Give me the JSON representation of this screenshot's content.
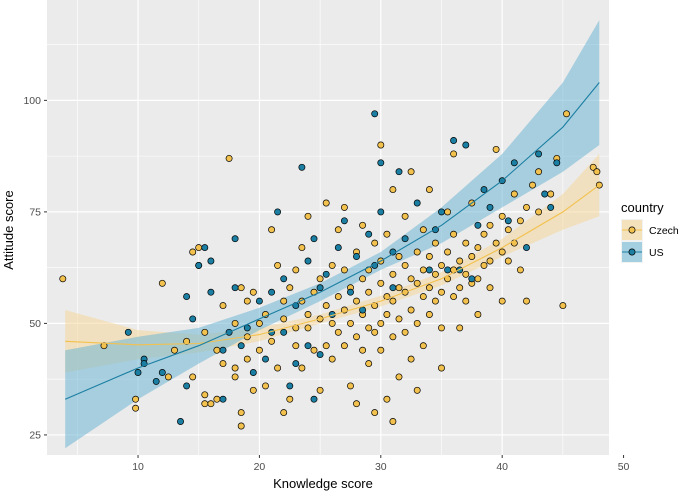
{
  "chart_data": {
    "type": "scatter",
    "title": "",
    "xlabel": "Knowledge score",
    "ylabel": "Attitude score",
    "xlim": [
      2.5,
      48.8
    ],
    "ylim": [
      20.5,
      122.5
    ],
    "xticks": [
      10,
      20,
      30,
      40,
      50
    ],
    "yticks": [
      25,
      50,
      75,
      100
    ],
    "grid": true,
    "legend": {
      "title": "country",
      "position": "right",
      "entries": [
        "Czech",
        "US"
      ]
    },
    "colors": {
      "Czech": "#F2C14E",
      "US": "#1B7FA3",
      "Czech_band": "#F5D79A",
      "US_band": "#6FB7D3",
      "panel": "#EBEBEB",
      "grid": "#FFFFFF",
      "axis_text": "#4D4D4D"
    },
    "series": [
      {
        "name": "Czech",
        "fit": {
          "x": [
            4,
            10,
            15,
            20,
            25,
            30,
            35,
            40,
            45,
            48
          ],
          "y": [
            46,
            45.2,
            45.5,
            47.5,
            51,
            55,
            60,
            67,
            75,
            81
          ]
        },
        "band": {
          "upper": [
            53,
            48.5,
            47.5,
            49,
            52,
            56.2,
            61.5,
            69,
            79,
            88
          ],
          "lower": [
            39,
            42,
            43.5,
            46,
            50,
            53.8,
            58.5,
            65,
            71,
            74
          ]
        },
        "points": [
          [
            3.8,
            60
          ],
          [
            7.2,
            45
          ],
          [
            9.8,
            33
          ],
          [
            9.8,
            31
          ],
          [
            12,
            59
          ],
          [
            12.5,
            38
          ],
          [
            13,
            44
          ],
          [
            14,
            46
          ],
          [
            14.5,
            38
          ],
          [
            14.5,
            66
          ],
          [
            15,
            67
          ],
          [
            15,
            63
          ],
          [
            15.5,
            48
          ],
          [
            15.5,
            34
          ],
          [
            15.5,
            32
          ],
          [
            16,
            32
          ],
          [
            16.5,
            44
          ],
          [
            16.5,
            33
          ],
          [
            17,
            41
          ],
          [
            17,
            54
          ],
          [
            17.5,
            87
          ],
          [
            18,
            50
          ],
          [
            18,
            40
          ],
          [
            18,
            38
          ],
          [
            18.5,
            30
          ],
          [
            18.5,
            27
          ],
          [
            18.5,
            58
          ],
          [
            19,
            55
          ],
          [
            19,
            47
          ],
          [
            19,
            42
          ],
          [
            19.5,
            35
          ],
          [
            19.5,
            57
          ],
          [
            20,
            44
          ],
          [
            20,
            50
          ],
          [
            20.5,
            36
          ],
          [
            20.5,
            52
          ],
          [
            21,
            46
          ],
          [
            21,
            71
          ],
          [
            21.5,
            63
          ],
          [
            21.5,
            40
          ],
          [
            22,
            51
          ],
          [
            22,
            30
          ],
          [
            22,
            55
          ],
          [
            22.5,
            33
          ],
          [
            22.5,
            58
          ],
          [
            23,
            49
          ],
          [
            23,
            62
          ],
          [
            23,
            45
          ],
          [
            23.5,
            55
          ],
          [
            23.5,
            67
          ],
          [
            23.5,
            40
          ],
          [
            24,
            52
          ],
          [
            24,
            74
          ],
          [
            24,
            49
          ],
          [
            24.5,
            57
          ],
          [
            24.5,
            44
          ],
          [
            25,
            51
          ],
          [
            25,
            60
          ],
          [
            25,
            35
          ],
          [
            25.5,
            77
          ],
          [
            25.5,
            54
          ],
          [
            25.5,
            45
          ],
          [
            26,
            63
          ],
          [
            26,
            50
          ],
          [
            26,
            42
          ],
          [
            26.5,
            56
          ],
          [
            26.5,
            71
          ],
          [
            26.5,
            48
          ],
          [
            27,
            62
          ],
          [
            27,
            53
          ],
          [
            27,
            45
          ],
          [
            27,
            76
          ],
          [
            27.5,
            58
          ],
          [
            27.5,
            50
          ],
          [
            27.5,
            36
          ],
          [
            28,
            66
          ],
          [
            28,
            55
          ],
          [
            28,
            47
          ],
          [
            28,
            32
          ],
          [
            28.5,
            60
          ],
          [
            28.5,
            52
          ],
          [
            28.5,
            44
          ],
          [
            28.5,
            72
          ],
          [
            29,
            57
          ],
          [
            29,
            62
          ],
          [
            29,
            49
          ],
          [
            29,
            41
          ],
          [
            29.5,
            54
          ],
          [
            29.5,
            68
          ],
          [
            29.5,
            48
          ],
          [
            29.5,
            30
          ],
          [
            30,
            59
          ],
          [
            30,
            50
          ],
          [
            30,
            64
          ],
          [
            30,
            44
          ],
          [
            30,
            90
          ],
          [
            30.5,
            56
          ],
          [
            30.5,
            70
          ],
          [
            30.5,
            52
          ],
          [
            30.5,
            33
          ],
          [
            31,
            61
          ],
          [
            31,
            55
          ],
          [
            31,
            47
          ],
          [
            31,
            80
          ],
          [
            31,
            28
          ],
          [
            31.5,
            58
          ],
          [
            31.5,
            65
          ],
          [
            31.5,
            51
          ],
          [
            31.5,
            38
          ],
          [
            32,
            63
          ],
          [
            32,
            57
          ],
          [
            32,
            48
          ],
          [
            32,
            74
          ],
          [
            32.5,
            60
          ],
          [
            32.5,
            53
          ],
          [
            32.5,
            84
          ],
          [
            32.5,
            42
          ],
          [
            33,
            66
          ],
          [
            33,
            59
          ],
          [
            33,
            50
          ],
          [
            33,
            35
          ],
          [
            33.5,
            62
          ],
          [
            33.5,
            56
          ],
          [
            33.5,
            71
          ],
          [
            33.5,
            45
          ],
          [
            34,
            65
          ],
          [
            34,
            58
          ],
          [
            34,
            52
          ],
          [
            34,
            80
          ],
          [
            34.5,
            61
          ],
          [
            34.5,
            55
          ],
          [
            34.5,
            68
          ],
          [
            35,
            63
          ],
          [
            35,
            57
          ],
          [
            35,
            49
          ],
          [
            35,
            40
          ],
          [
            35.5,
            66
          ],
          [
            35.5,
            60
          ],
          [
            35.5,
            75
          ],
          [
            36,
            62
          ],
          [
            36,
            56
          ],
          [
            36,
            70
          ],
          [
            36,
            88
          ],
          [
            36.5,
            64
          ],
          [
            36.5,
            58
          ],
          [
            36.5,
            49
          ],
          [
            37,
            68
          ],
          [
            37,
            61
          ],
          [
            37,
            55
          ],
          [
            37.5,
            65
          ],
          [
            37.5,
            59
          ],
          [
            37.5,
            77
          ],
          [
            38,
            67
          ],
          [
            38,
            60
          ],
          [
            38,
            52
          ],
          [
            38.5,
            70
          ],
          [
            38.5,
            63
          ],
          [
            39,
            72
          ],
          [
            39,
            64
          ],
          [
            39,
            58
          ],
          [
            39.5,
            68
          ],
          [
            39.5,
            89
          ],
          [
            40,
            74
          ],
          [
            40,
            66
          ],
          [
            40,
            55
          ],
          [
            40.5,
            71
          ],
          [
            40.5,
            64
          ],
          [
            41,
            79
          ],
          [
            41,
            68
          ],
          [
            41.5,
            73
          ],
          [
            41.5,
            62
          ],
          [
            42,
            76
          ],
          [
            42,
            55
          ],
          [
            42.5,
            81
          ],
          [
            43,
            84
          ],
          [
            43,
            75
          ],
          [
            44,
            79
          ],
          [
            44.5,
            87
          ],
          [
            45,
            54
          ],
          [
            45.3,
            97
          ],
          [
            47.5,
            85
          ],
          [
            47.8,
            84
          ],
          [
            48,
            81
          ]
        ]
      },
      {
        "name": "US",
        "fit": {
          "x": [
            4,
            10,
            15,
            20,
            25,
            30,
            35,
            40,
            45,
            48
          ],
          "y": [
            33,
            40,
            45,
            51,
            57,
            64,
            72,
            82,
            94,
            104
          ]
        },
        "band": {
          "upper": [
            44,
            47,
            49,
            53.5,
            59,
            66,
            76,
            88,
            104,
            118
          ],
          "lower": [
            22,
            33,
            41,
            48.5,
            55,
            62,
            68,
            76,
            84,
            90
          ]
        },
        "points": [
          [
            9.2,
            48
          ],
          [
            10,
            39
          ],
          [
            10.5,
            42
          ],
          [
            10.5,
            41
          ],
          [
            11.5,
            37
          ],
          [
            12,
            39
          ],
          [
            13.5,
            28
          ],
          [
            14,
            36
          ],
          [
            14,
            56
          ],
          [
            14.5,
            51
          ],
          [
            15,
            63
          ],
          [
            15.5,
            67
          ],
          [
            16,
            64
          ],
          [
            16,
            57
          ],
          [
            17,
            44
          ],
          [
            17,
            33
          ],
          [
            17.5,
            48
          ],
          [
            18,
            58
          ],
          [
            18,
            69
          ],
          [
            18.5,
            45
          ],
          [
            19,
            49
          ],
          [
            19.5,
            39
          ],
          [
            20,
            55
          ],
          [
            20.5,
            42
          ],
          [
            21,
            57
          ],
          [
            21,
            48
          ],
          [
            21.5,
            75
          ],
          [
            22,
            48
          ],
          [
            22,
            60
          ],
          [
            22.5,
            36
          ],
          [
            23,
            41
          ],
          [
            23,
            54
          ],
          [
            23.5,
            85
          ],
          [
            24,
            45
          ],
          [
            24,
            64
          ],
          [
            24.5,
            69
          ],
          [
            24.5,
            33
          ],
          [
            25,
            58
          ],
          [
            25,
            43
          ],
          [
            25.5,
            61
          ],
          [
            26,
            52
          ],
          [
            26.5,
            67
          ],
          [
            27,
            73
          ],
          [
            27.5,
            57
          ],
          [
            28,
            65
          ],
          [
            28.5,
            53
          ],
          [
            29,
            70
          ],
          [
            29.5,
            97
          ],
          [
            29.5,
            63
          ],
          [
            30,
            75
          ],
          [
            30,
            86
          ],
          [
            31,
            66
          ],
          [
            31,
            58
          ],
          [
            31.5,
            84
          ],
          [
            32,
            69
          ],
          [
            33,
            77
          ],
          [
            34,
            62
          ],
          [
            34.5,
            71
          ],
          [
            35,
            75
          ],
          [
            35.5,
            62
          ],
          [
            36,
            91
          ],
          [
            36.5,
            62
          ],
          [
            37,
            90
          ],
          [
            37.5,
            60
          ],
          [
            38,
            72
          ],
          [
            38.5,
            80
          ],
          [
            39,
            76
          ],
          [
            40,
            82
          ],
          [
            40.5,
            73
          ],
          [
            41,
            86
          ],
          [
            42,
            67
          ],
          [
            43,
            88
          ],
          [
            43.5,
            79
          ],
          [
            44,
            76
          ],
          [
            44.5,
            86
          ]
        ]
      }
    ]
  }
}
